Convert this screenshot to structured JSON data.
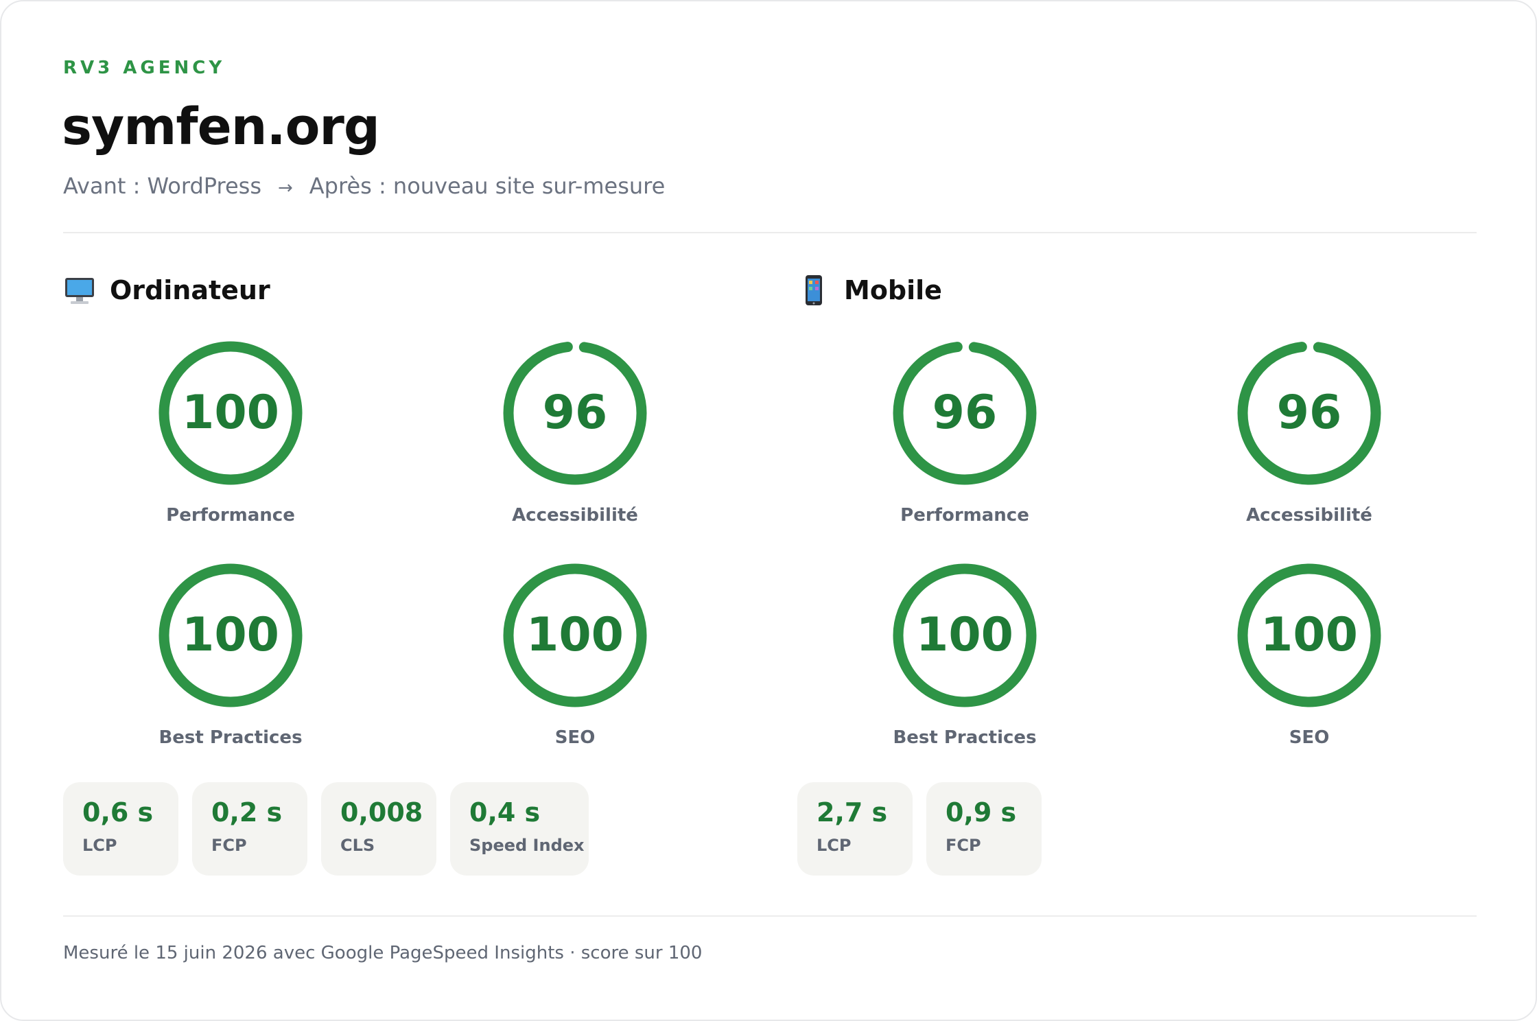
{
  "header": {
    "agency": "RV3 AGENCY",
    "site": "symfen.org",
    "before": "Avant : WordPress",
    "arrow": "→",
    "after": "Après : nouveau site sur-mesure"
  },
  "desktop": {
    "title": "Ordinateur",
    "icon": "desktop-computer-icon",
    "scores": [
      {
        "label": "Performance",
        "value": "100",
        "fraction": 1.0
      },
      {
        "label": "Accessibilité",
        "value": "96",
        "fraction": 0.96
      },
      {
        "label": "Best Practices",
        "value": "100",
        "fraction": 1.0
      },
      {
        "label": "SEO",
        "value": "100",
        "fraction": 1.0
      }
    ],
    "metrics": [
      {
        "value": "0,6 s",
        "label": "LCP"
      },
      {
        "value": "0,2 s",
        "label": "FCP"
      },
      {
        "value": "0,008",
        "label": "CLS"
      },
      {
        "value": "0,4 s",
        "label": "Speed Index"
      }
    ]
  },
  "mobile": {
    "title": "Mobile",
    "icon": "mobile-phone-icon",
    "scores": [
      {
        "label": "Performance",
        "value": "96",
        "fraction": 0.96
      },
      {
        "label": "Accessibilité",
        "value": "96",
        "fraction": 0.96
      },
      {
        "label": "Best Practices",
        "value": "100",
        "fraction": 1.0
      },
      {
        "label": "SEO",
        "value": "100",
        "fraction": 1.0
      }
    ],
    "metrics": [
      {
        "value": "2,7 s",
        "label": "LCP"
      },
      {
        "value": "0,9 s",
        "label": "FCP"
      }
    ]
  },
  "footer": "Mesuré le 15 juin 2026 avec Google PageSpeed Insights · score sur 100",
  "colors": {
    "accent": "#2e9446",
    "score": "#1f7a36",
    "label": "#5f6673"
  }
}
